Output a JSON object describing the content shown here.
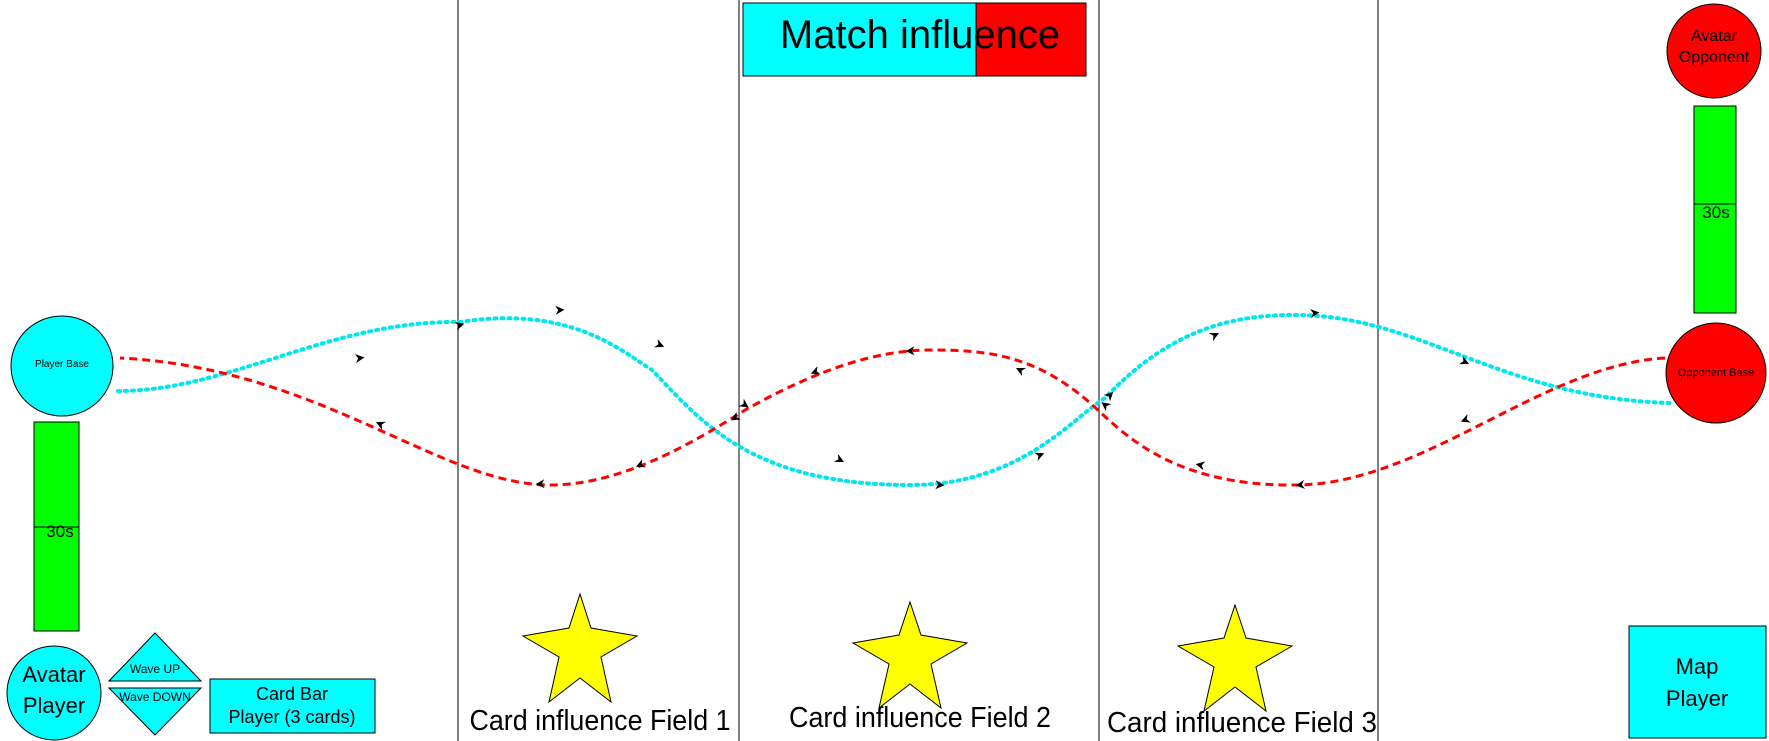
{
  "colors": {
    "player": "#00ffff",
    "opponent": "#ff0000",
    "timer": "#00ff00",
    "star": "#ffff00",
    "outline": "#000000",
    "player_path": "#00e5ee",
    "opponent_path": "#ff0000"
  },
  "match_influence": {
    "label": "Match influence",
    "player_share": 0.68
  },
  "player": {
    "base_label": "Player Base",
    "avatar_line1": "Avatar",
    "avatar_line2": "Player",
    "timer_label": "30s",
    "timer_fill": 0.5,
    "wave_up_label": "Wave UP",
    "wave_down_label": "Wave DOWN",
    "card_bar_line1": "Card Bar",
    "card_bar_line2": "Player (3 cards)",
    "map_line1": "Map",
    "map_line2": "Player"
  },
  "opponent": {
    "base_label": "Opponent Base",
    "avatar_line1": "Avatar",
    "avatar_line2": "Opponent",
    "timer_label": "30s",
    "timer_fill": 0.5
  },
  "fields": [
    {
      "label": "Card influence Field 1",
      "icon": "star-icon"
    },
    {
      "label": "Card influence Field 2",
      "icon": "star-icon"
    },
    {
      "label": "Card influence Field  3",
      "icon": "star-icon"
    }
  ]
}
